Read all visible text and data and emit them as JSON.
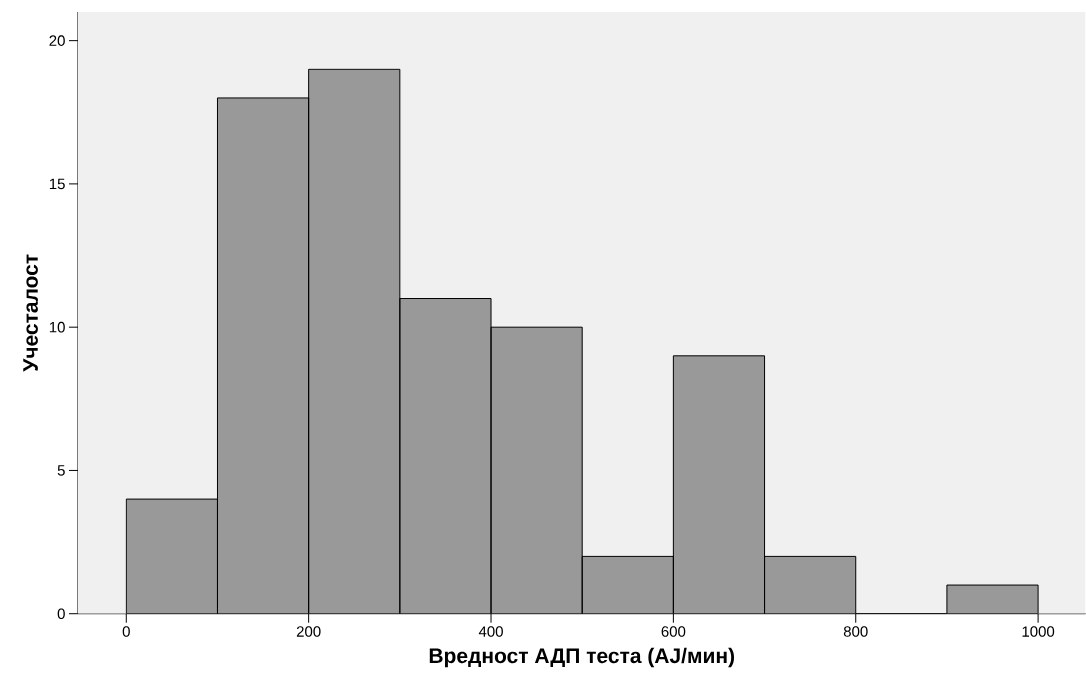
{
  "chart_data": {
    "type": "histogram",
    "xlabel": "Вредност АДП теста (AJ/мин)",
    "ylabel": "Учесталост",
    "bins": [
      0,
      100,
      200,
      300,
      400,
      500,
      600,
      700,
      800,
      900,
      1000
    ],
    "values": [
      4,
      18,
      19,
      11,
      10,
      2,
      9,
      2,
      0,
      1
    ],
    "color": "#999999",
    "xlim": [
      -53,
      1052
    ],
    "ylim": [
      0,
      21
    ],
    "xticks": [
      0,
      200,
      400,
      600,
      800,
      1000
    ],
    "yticks": [
      0,
      5,
      10,
      15,
      20
    ]
  }
}
